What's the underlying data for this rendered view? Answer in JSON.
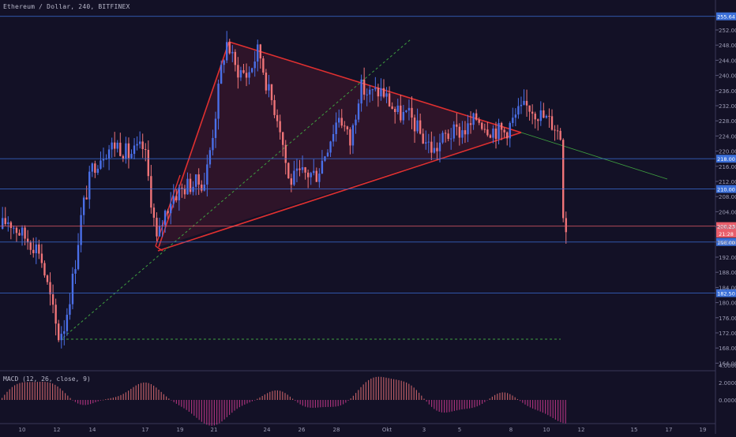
{
  "chart": {
    "title": "Ethereum / Dollar, 240, BITFINEX",
    "macd_label": "MACD (12, 26, close, 9)",
    "price_axis": {
      "min": 162,
      "max": 256,
      "ticks": [
        "252.00",
        "248.00",
        "244.00",
        "240.00",
        "236.00",
        "232.00",
        "228.00",
        "224.00",
        "220.00",
        "216.00",
        "212.00",
        "208.00",
        "204.00",
        "200.00",
        "196.00",
        "192.00",
        "188.00",
        "184.00",
        "180.00",
        "176.00",
        "172.00",
        "168.00",
        "164.00"
      ]
    },
    "macd_axis": {
      "ticks": [
        "4.0000",
        "2.0000",
        "0.0000"
      ]
    },
    "time_axis": [
      "10",
      "12",
      "14",
      "17",
      "19",
      "21",
      "24",
      "26",
      "28",
      "Okt",
      "3",
      "5",
      "8",
      "10",
      "12",
      "15",
      "17",
      "19"
    ],
    "level_badges": [
      {
        "price": 255.6,
        "label": "255.64",
        "color": "#3b6fd8"
      },
      {
        "price": 218.0,
        "label": "218.00",
        "color": "#3b6fd8"
      },
      {
        "price": 210.0,
        "label": "210.00",
        "color": "#3b6fd8"
      },
      {
        "price": 200.2,
        "label": "200.23",
        "color": "#e85d6a"
      },
      {
        "price": 198.2,
        "label": "21:28",
        "color": "#e85d6a"
      },
      {
        "price": 196.0,
        "label": "196.00",
        "color": "#3b6fd8"
      },
      {
        "price": 182.5,
        "label": "182.50",
        "color": "#3b6fd8"
      }
    ],
    "colors": {
      "up": "#4a6fe8",
      "down": "#f07478",
      "pattern": "#e03030",
      "trend": "#3fa040"
    }
  }
}
